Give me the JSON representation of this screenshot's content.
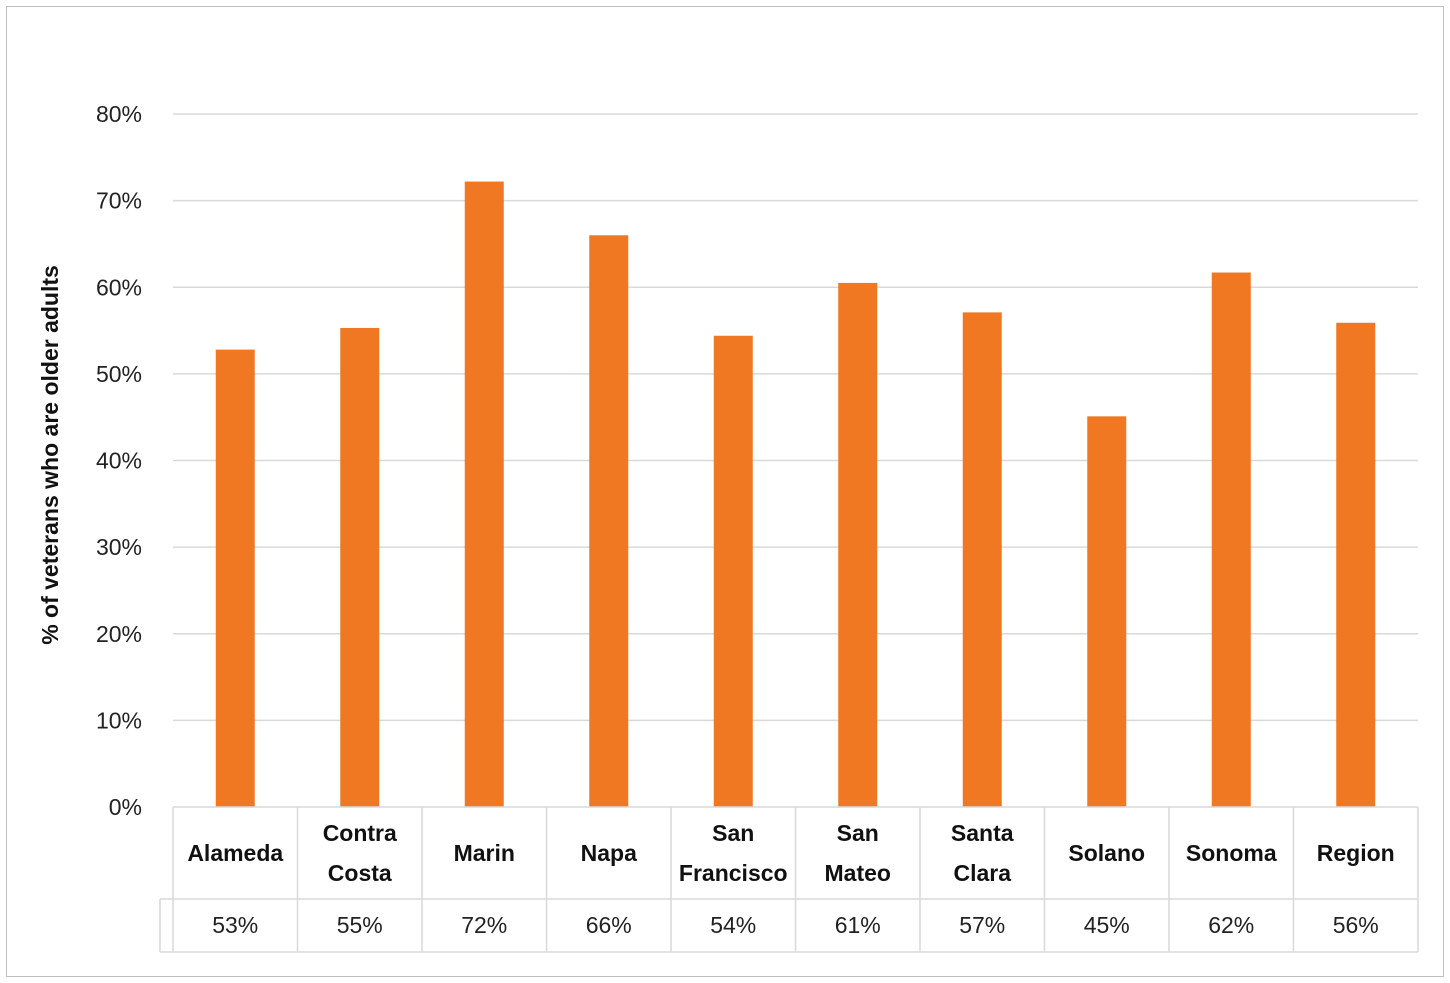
{
  "chart_data": {
    "type": "bar",
    "title": "",
    "xlabel": "",
    "ylabel": "% of veterans who are older adults",
    "ylim": [
      0,
      80
    ],
    "ytick_step": 10,
    "ytick_labels": [
      "0%",
      "10%",
      "20%",
      "30%",
      "40%",
      "50%",
      "60%",
      "70%",
      "80%"
    ],
    "grid": true,
    "legend": "none",
    "bar_color": "#f07822",
    "categories": [
      [
        "Alameda"
      ],
      [
        "Contra",
        "Costa"
      ],
      [
        "Marin"
      ],
      [
        "Napa"
      ],
      [
        "San",
        "Francisco"
      ],
      [
        "San",
        "Mateo"
      ],
      [
        "Santa",
        "Clara"
      ],
      [
        "Solano"
      ],
      [
        "Sonoma"
      ],
      [
        "Region"
      ]
    ],
    "values": [
      52.8,
      55.3,
      72.2,
      66.0,
      54.4,
      60.5,
      57.1,
      45.1,
      61.7,
      55.9
    ],
    "data_table_labels": [
      "53%",
      "55%",
      "72%",
      "66%",
      "54%",
      "61%",
      "57%",
      "45%",
      "62%",
      "56%"
    ]
  }
}
